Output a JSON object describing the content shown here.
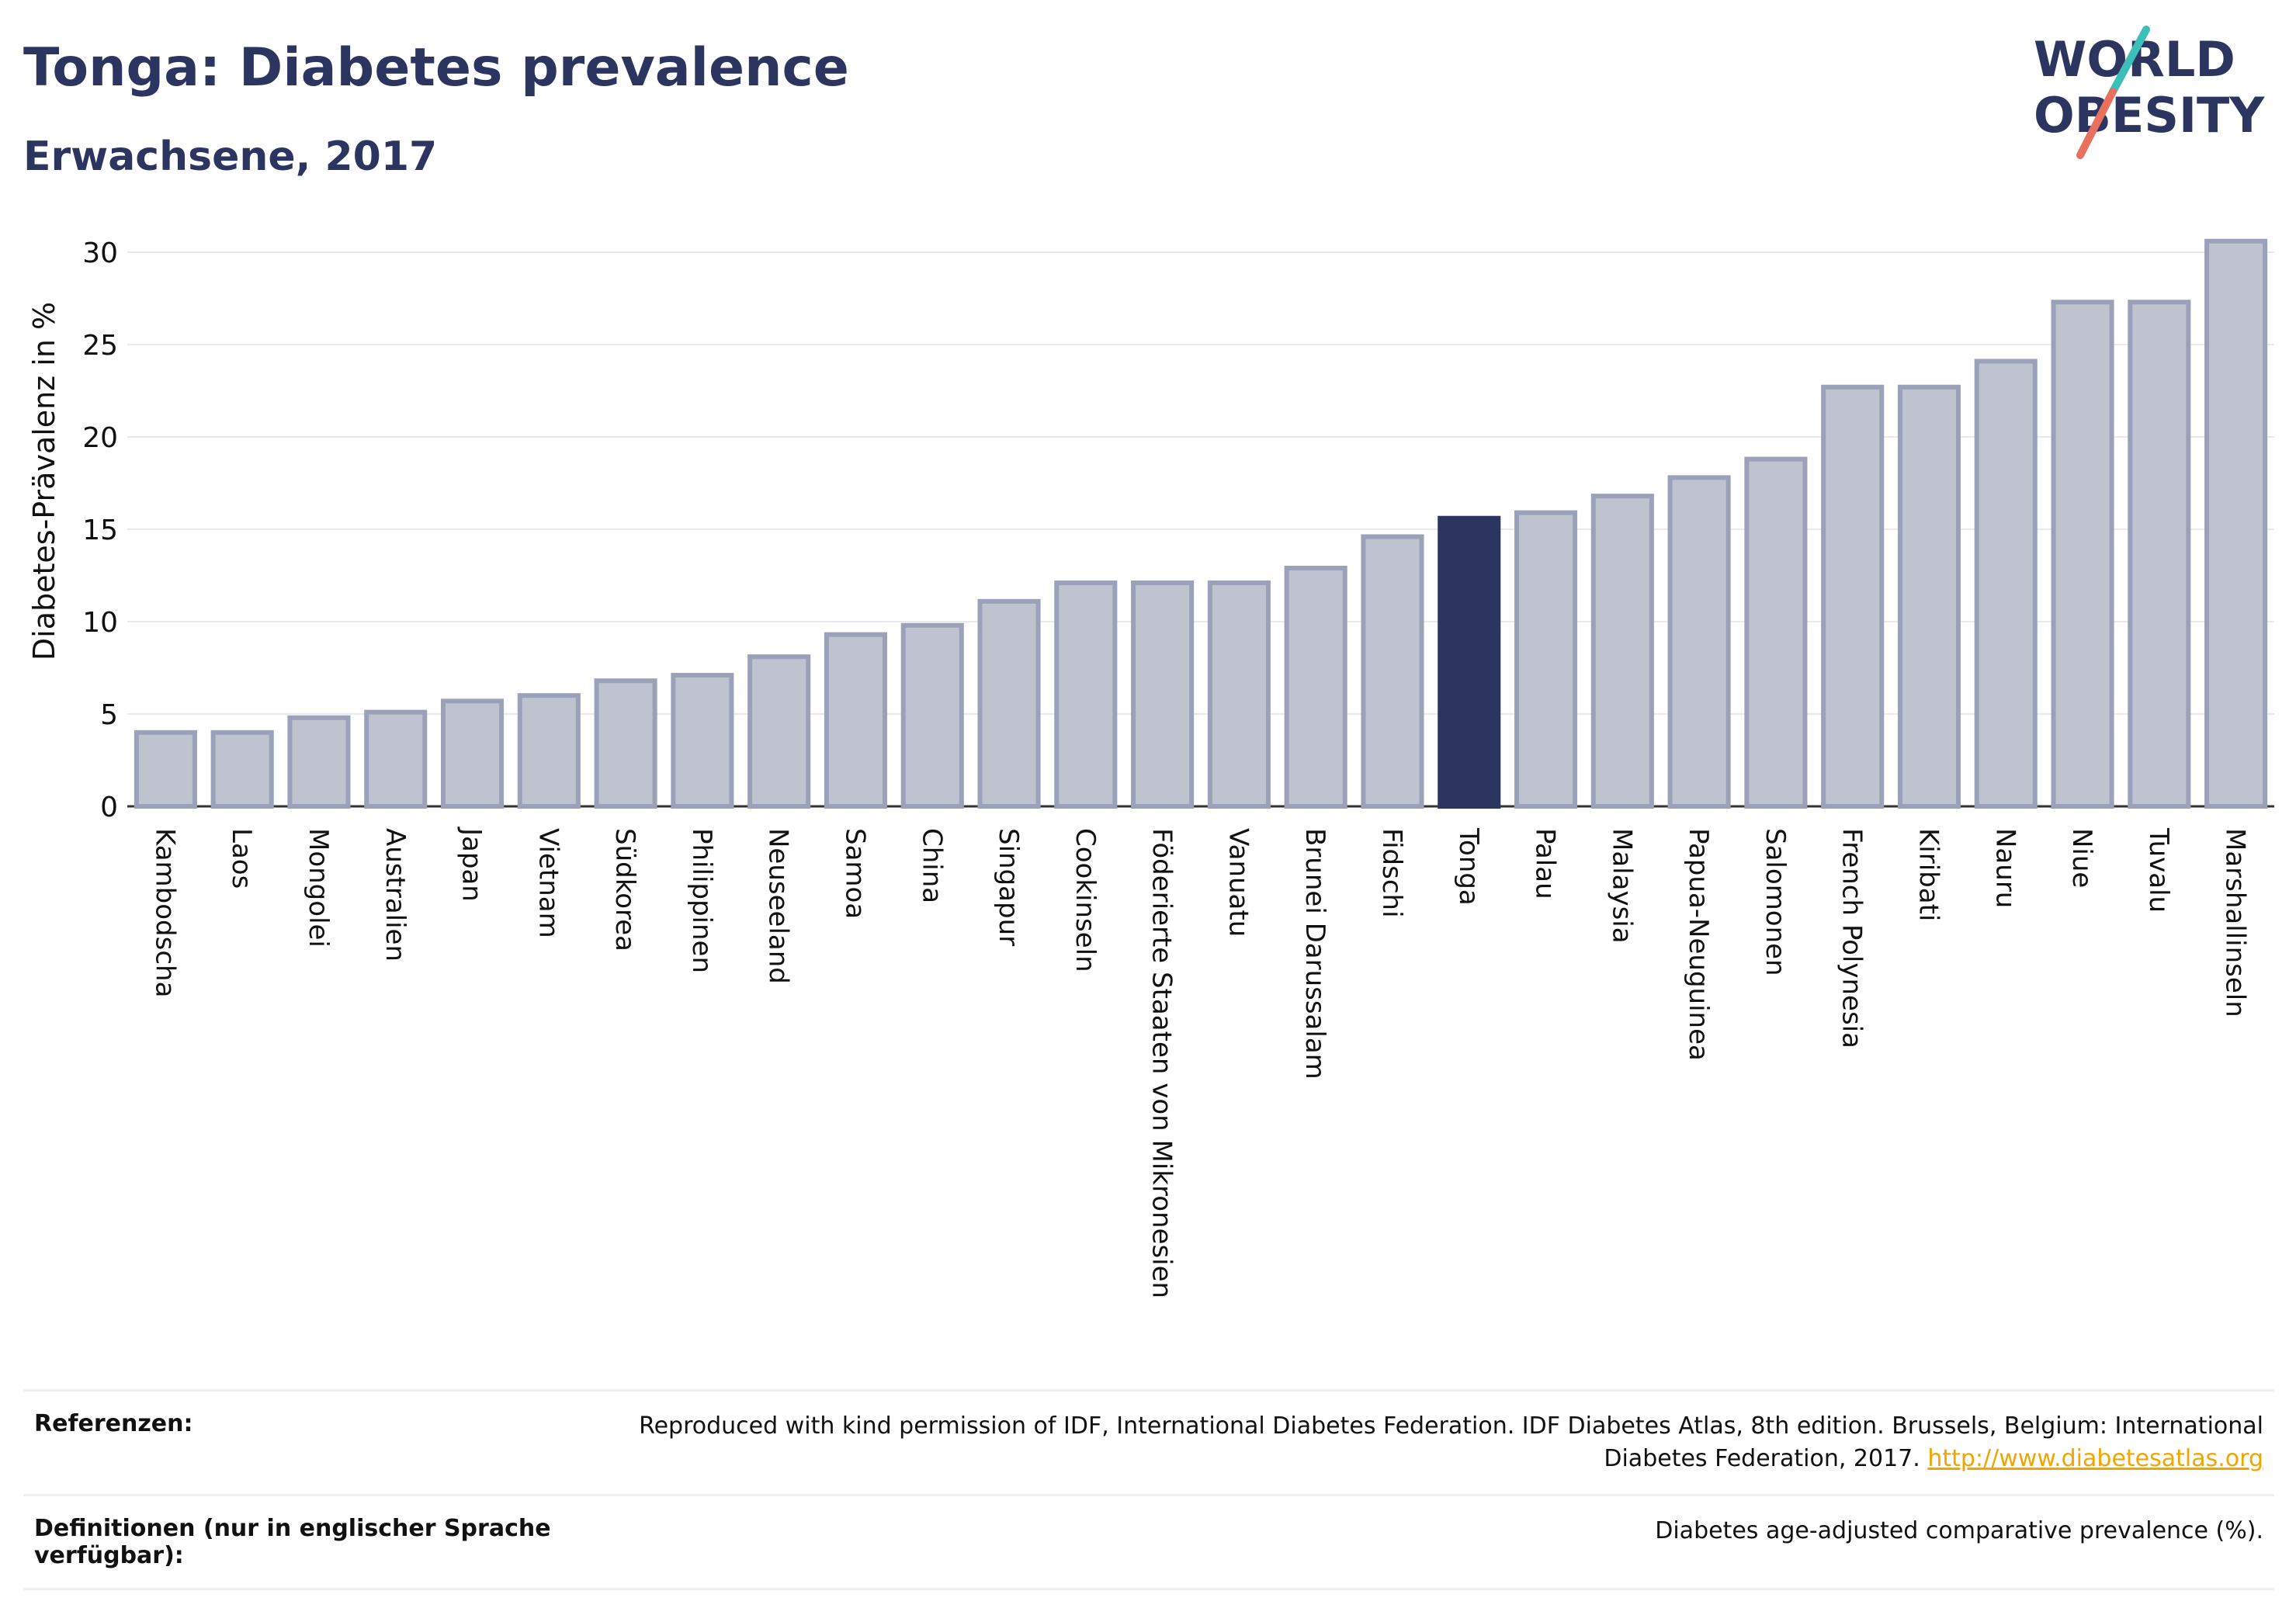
{
  "header": {
    "title": "Tonga: Diabetes prevalence",
    "subtitle": "Erwachsene, 2017"
  },
  "logo": {
    "line1": "WORLD",
    "line2": "OBESITY"
  },
  "colors": {
    "highlight": "#2b3560",
    "bar_fill": "#bfc3d0",
    "bar_stroke": "#9aa1b8",
    "grid": "#e8eaef",
    "logo_teal": "#3bbfb8",
    "logo_coral": "#e8705e"
  },
  "chart_data": {
    "type": "bar",
    "title": "Tonga: Diabetes prevalence",
    "subtitle": "Erwachsene, 2017",
    "xlabel": "",
    "ylabel": "Diabetes-Prävalenz in %",
    "ylim": [
      0,
      31
    ],
    "yticks": [
      0,
      5,
      10,
      15,
      20,
      25,
      30
    ],
    "grid": true,
    "highlight": "Tonga",
    "categories": [
      "Kambodscha",
      "Laos",
      "Mongolei",
      "Australien",
      "Japan",
      "Vietnam",
      "Südkorea",
      "Philippinen",
      "Neuseeland",
      "Samoa",
      "China",
      "Singapur",
      "Cookinseln",
      "Föderierte Staaten von Mikronesien",
      "Vanuatu",
      "Brunei Darussalam",
      "Fidschi",
      "Tonga",
      "Palau",
      "Malaysia",
      "Papua-Neuguinea",
      "Salomonen",
      "French Polynesia",
      "Kiribati",
      "Nauru",
      "Niue",
      "Tuvalu",
      "Marshallinseln"
    ],
    "values": [
      4.0,
      4.0,
      4.8,
      5.1,
      5.7,
      6.0,
      6.8,
      7.1,
      8.1,
      9.3,
      9.8,
      11.1,
      12.1,
      12.1,
      12.1,
      12.9,
      14.6,
      15.6,
      15.9,
      16.8,
      17.8,
      18.8,
      22.7,
      22.7,
      24.1,
      27.3,
      27.3,
      30.6
    ]
  },
  "references": {
    "ref_label": "Referenzen:",
    "ref_text": "Reproduced with kind permission of IDF, International Diabetes Federation. IDF Diabetes Atlas, 8th edition. Brussels, Belgium: International Diabetes Federation, 2017.",
    "ref_link": "http://www.diabetesatlas.org",
    "def_label": "Definitionen (nur in englischer Sprache verfügbar):",
    "def_text": "Diabetes age-adjusted comparative prevalence (%)."
  }
}
